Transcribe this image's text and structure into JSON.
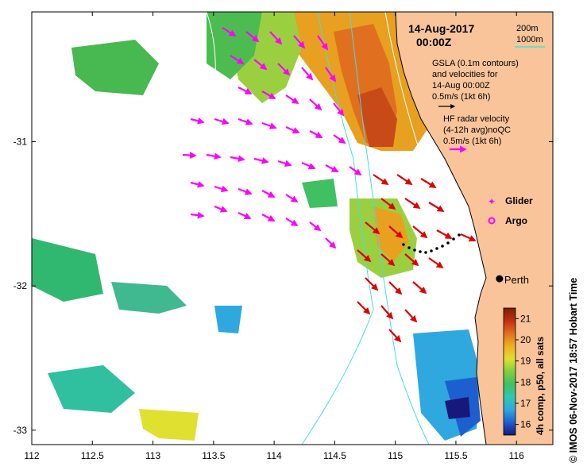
{
  "title": {
    "date": "14-Aug-2017",
    "time": "00:00Z"
  },
  "contour_legend": {
    "shallow": "200m",
    "deep": "1000m",
    "deep_color": "#40e0e0"
  },
  "gsla_note": {
    "line1": "GSLA (0.1m contours)",
    "line2": "and velocities for",
    "line3": "14-Aug 00:00Z",
    "scale": "0.5m/s (1kt 6h)"
  },
  "hf_note": {
    "line1": "HF radar velocity",
    "line2": "(4-12h avg)noQC",
    "scale": "0.5m/s (1kt 6h)",
    "arrow_color": "#ff00ff"
  },
  "platform_legend": {
    "glider": "Glider",
    "argo": "Argo",
    "marker_color": "#ff00ff"
  },
  "place": {
    "city": "Perth",
    "lon": 115.86,
    "lat": -31.95
  },
  "axes": {
    "x_ticks": [
      "112",
      "112.5",
      "113",
      "113.5",
      "114",
      "114.5",
      "115",
      "115.5",
      "116"
    ],
    "y_ticks": [
      "-31",
      "-32",
      "-33"
    ],
    "xlim": [
      112,
      116.3
    ],
    "ylim": [
      -33.1,
      -30.1
    ]
  },
  "colorbar": {
    "label": "4h comp, p50, all sats",
    "ticks": [
      "21",
      "20",
      "19",
      "18",
      "17",
      "16"
    ],
    "range": [
      15.5,
      21.5
    ],
    "stops": [
      "#18187a",
      "#1e5fd0",
      "#2fa8e0",
      "#30c8b0",
      "#40c060",
      "#80d040",
      "#e0e030",
      "#f0b020",
      "#e07020",
      "#c03010",
      "#7a2000"
    ]
  },
  "credit": "© IMOS 06-Nov-2017 18:57 Hobart Time",
  "colors": {
    "land": "#f9c49a",
    "sea": "#ffffff",
    "hf_arrow": "#ff00ff",
    "gsla_arrow": "#e00000",
    "contour_200": "#ffffff",
    "contour_1000": "#40e0e0"
  }
}
